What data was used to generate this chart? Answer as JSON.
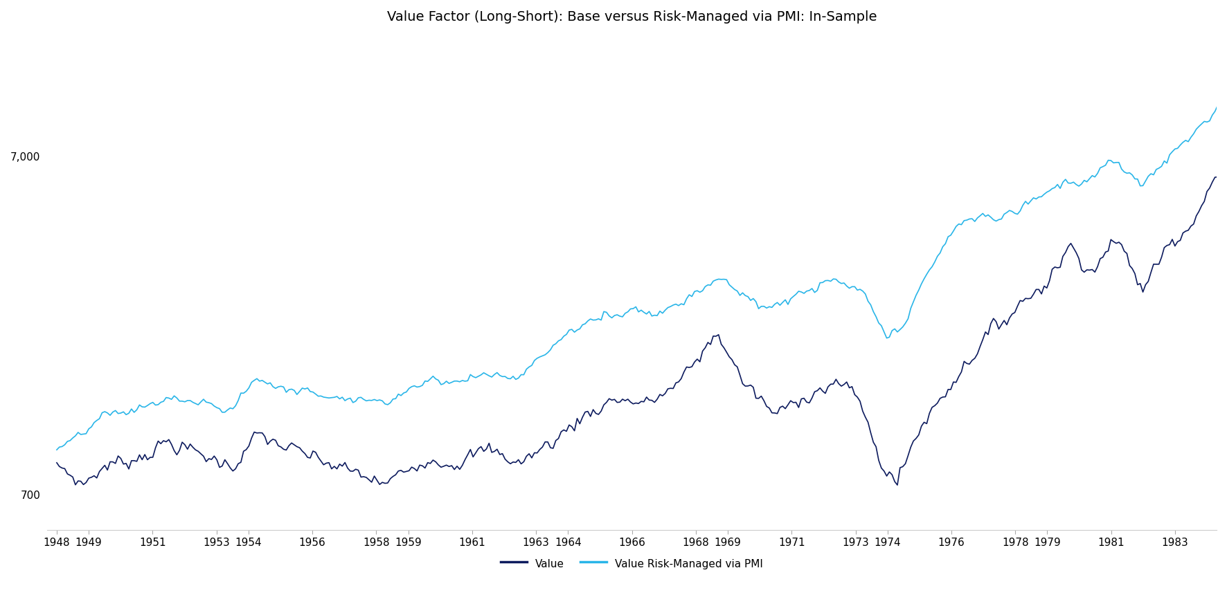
{
  "title": "Value Factor (Long-Short): Base versus Risk-Managed via PMI: In-Sample",
  "value_color": "#0d1b5e",
  "risk_managed_color": "#29b5e8",
  "background_color": "#ffffff",
  "line_width": 1.2,
  "legend_labels": [
    "Value",
    "Value Risk-Managed via PMI"
  ],
  "x_tick_labels": [
    "1948",
    "1949",
    "1951",
    "1953",
    "1954",
    "1956",
    "1958",
    "1959",
    "1961",
    "1963",
    "1964",
    "1966",
    "1968",
    "1969",
    "1971",
    "1973",
    "1974",
    "1976",
    "1978",
    "1979",
    "1981",
    "1983"
  ],
  "y_tick_labels": [
    "700",
    "7,000"
  ],
  "y_tick_values": [
    700,
    7000
  ],
  "ylim_log": [
    550,
    16000
  ],
  "start_year": 1948,
  "end_year": 1985,
  "title_fontsize": 14,
  "tick_fontsize": 11,
  "legend_fontsize": 11
}
